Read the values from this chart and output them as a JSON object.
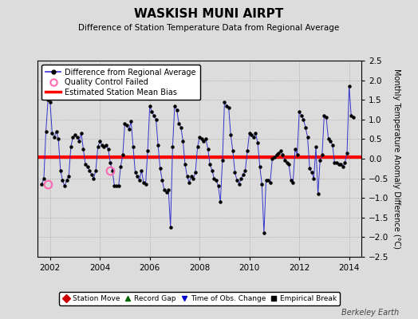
{
  "title": "WASKISH MUNI AIRPT",
  "subtitle": "Difference of Station Temperature Data from Regional Average",
  "ylabel": "Monthly Temperature Anomaly Difference (°C)",
  "xlim": [
    2001.5,
    2014.5
  ],
  "ylim": [
    -2.5,
    2.5
  ],
  "yticks": [
    -2.5,
    -2,
    -1.5,
    -1,
    -0.5,
    0,
    0.5,
    1,
    1.5,
    2,
    2.5
  ],
  "xticks": [
    2002,
    2004,
    2006,
    2008,
    2010,
    2012,
    2014
  ],
  "bias_value": 0.05,
  "background_color": "#dcdcdc",
  "plot_bg_color": "#dcdcdc",
  "line_color": "#3333cc",
  "bias_color": "#ff0000",
  "marker_color": "#000000",
  "qc_fail_color": "#ff69b4",
  "watermark": "Berkeley Earth",
  "time_series": [
    [
      2001.667,
      -0.65
    ],
    [
      2001.75,
      -0.5
    ],
    [
      2001.833,
      0.7
    ],
    [
      2001.917,
      1.5
    ],
    [
      2002.0,
      1.45
    ],
    [
      2002.083,
      0.65
    ],
    [
      2002.167,
      0.55
    ],
    [
      2002.25,
      0.7
    ],
    [
      2002.333,
      0.5
    ],
    [
      2002.417,
      -0.3
    ],
    [
      2002.5,
      -0.55
    ],
    [
      2002.583,
      -0.7
    ],
    [
      2002.667,
      -0.55
    ],
    [
      2002.75,
      -0.45
    ],
    [
      2002.833,
      0.3
    ],
    [
      2002.917,
      0.55
    ],
    [
      2003.0,
      0.6
    ],
    [
      2003.083,
      0.55
    ],
    [
      2003.167,
      0.45
    ],
    [
      2003.25,
      0.65
    ],
    [
      2003.333,
      0.25
    ],
    [
      2003.417,
      -0.15
    ],
    [
      2003.5,
      -0.2
    ],
    [
      2003.583,
      -0.3
    ],
    [
      2003.667,
      -0.4
    ],
    [
      2003.75,
      -0.5
    ],
    [
      2003.833,
      -0.3
    ],
    [
      2003.917,
      0.3
    ],
    [
      2004.0,
      0.45
    ],
    [
      2004.083,
      0.35
    ],
    [
      2004.167,
      0.3
    ],
    [
      2004.25,
      0.35
    ],
    [
      2004.333,
      0.25
    ],
    [
      2004.417,
      -0.1
    ],
    [
      2004.5,
      -0.3
    ],
    [
      2004.583,
      -0.7
    ],
    [
      2004.667,
      -0.7
    ],
    [
      2004.75,
      -0.7
    ],
    [
      2004.833,
      -0.2
    ],
    [
      2004.917,
      0.1
    ],
    [
      2005.0,
      0.9
    ],
    [
      2005.083,
      0.85
    ],
    [
      2005.167,
      0.75
    ],
    [
      2005.25,
      0.95
    ],
    [
      2005.333,
      0.3
    ],
    [
      2005.417,
      -0.35
    ],
    [
      2005.5,
      -0.45
    ],
    [
      2005.583,
      -0.55
    ],
    [
      2005.667,
      -0.3
    ],
    [
      2005.75,
      -0.6
    ],
    [
      2005.833,
      -0.65
    ],
    [
      2005.917,
      0.2
    ],
    [
      2006.0,
      1.35
    ],
    [
      2006.083,
      1.2
    ],
    [
      2006.167,
      1.1
    ],
    [
      2006.25,
      1.0
    ],
    [
      2006.333,
      0.35
    ],
    [
      2006.417,
      -0.25
    ],
    [
      2006.5,
      -0.55
    ],
    [
      2006.583,
      -0.8
    ],
    [
      2006.667,
      -0.85
    ],
    [
      2006.75,
      -0.8
    ],
    [
      2006.833,
      -1.75
    ],
    [
      2006.917,
      0.3
    ],
    [
      2007.0,
      1.35
    ],
    [
      2007.083,
      1.25
    ],
    [
      2007.167,
      0.9
    ],
    [
      2007.25,
      0.8
    ],
    [
      2007.333,
      0.45
    ],
    [
      2007.417,
      -0.15
    ],
    [
      2007.5,
      -0.45
    ],
    [
      2007.583,
      -0.6
    ],
    [
      2007.667,
      -0.45
    ],
    [
      2007.75,
      -0.5
    ],
    [
      2007.833,
      -0.35
    ],
    [
      2007.917,
      0.3
    ],
    [
      2008.0,
      0.55
    ],
    [
      2008.083,
      0.5
    ],
    [
      2008.167,
      0.45
    ],
    [
      2008.25,
      0.5
    ],
    [
      2008.333,
      0.25
    ],
    [
      2008.417,
      -0.15
    ],
    [
      2008.5,
      -0.3
    ],
    [
      2008.583,
      -0.5
    ],
    [
      2008.667,
      -0.55
    ],
    [
      2008.75,
      -0.7
    ],
    [
      2008.833,
      -1.1
    ],
    [
      2008.917,
      -0.05
    ],
    [
      2009.0,
      1.45
    ],
    [
      2009.083,
      1.35
    ],
    [
      2009.167,
      1.3
    ],
    [
      2009.25,
      0.6
    ],
    [
      2009.333,
      0.2
    ],
    [
      2009.417,
      -0.35
    ],
    [
      2009.5,
      -0.55
    ],
    [
      2009.583,
      -0.65
    ],
    [
      2009.667,
      -0.5
    ],
    [
      2009.75,
      -0.4
    ],
    [
      2009.833,
      -0.3
    ],
    [
      2009.917,
      0.2
    ],
    [
      2010.0,
      0.65
    ],
    [
      2010.083,
      0.6
    ],
    [
      2010.167,
      0.55
    ],
    [
      2010.25,
      0.65
    ],
    [
      2010.333,
      0.4
    ],
    [
      2010.417,
      -0.2
    ],
    [
      2010.5,
      -0.65
    ],
    [
      2010.583,
      -1.9
    ],
    [
      2010.667,
      -0.55
    ],
    [
      2010.75,
      -0.55
    ],
    [
      2010.833,
      -0.6
    ],
    [
      2010.917,
      0.0
    ],
    [
      2011.0,
      0.05
    ],
    [
      2011.083,
      0.1
    ],
    [
      2011.167,
      0.15
    ],
    [
      2011.25,
      0.2
    ],
    [
      2011.333,
      0.1
    ],
    [
      2011.417,
      -0.05
    ],
    [
      2011.5,
      -0.1
    ],
    [
      2011.583,
      -0.15
    ],
    [
      2011.667,
      -0.55
    ],
    [
      2011.75,
      -0.6
    ],
    [
      2011.833,
      0.25
    ],
    [
      2011.917,
      0.1
    ],
    [
      2012.0,
      1.2
    ],
    [
      2012.083,
      1.1
    ],
    [
      2012.167,
      1.0
    ],
    [
      2012.25,
      0.8
    ],
    [
      2012.333,
      0.55
    ],
    [
      2012.417,
      -0.25
    ],
    [
      2012.5,
      -0.35
    ],
    [
      2012.583,
      -0.5
    ],
    [
      2012.667,
      0.3
    ],
    [
      2012.75,
      -0.9
    ],
    [
      2012.833,
      -0.05
    ],
    [
      2012.917,
      0.1
    ],
    [
      2013.0,
      1.1
    ],
    [
      2013.083,
      1.05
    ],
    [
      2013.167,
      0.5
    ],
    [
      2013.25,
      0.45
    ],
    [
      2013.333,
      0.35
    ],
    [
      2013.417,
      -0.1
    ],
    [
      2013.5,
      -0.1
    ],
    [
      2013.583,
      -0.15
    ],
    [
      2013.667,
      -0.15
    ],
    [
      2013.75,
      -0.2
    ],
    [
      2013.833,
      -0.1
    ],
    [
      2013.917,
      0.15
    ],
    [
      2014.0,
      1.85
    ],
    [
      2014.083,
      1.1
    ],
    [
      2014.167,
      1.05
    ]
  ],
  "qc_fail_points": [
    [
      2001.917,
      -0.65
    ],
    [
      2004.417,
      -0.3
    ]
  ],
  "legend1_items": [
    {
      "label": "Difference from Regional Average",
      "color": "#3333cc",
      "type": "line_marker"
    },
    {
      "label": "Quality Control Failed",
      "color": "#ff69b4",
      "type": "circle_open"
    },
    {
      "label": "Estimated Station Mean Bias",
      "color": "#ff0000",
      "type": "line"
    }
  ],
  "legend2_items": [
    {
      "label": "Station Move",
      "color": "#cc0000",
      "type": "diamond"
    },
    {
      "label": "Record Gap",
      "color": "#006600",
      "type": "triangle_up"
    },
    {
      "label": "Time of Obs. Change",
      "color": "#0000cc",
      "type": "triangle_down"
    },
    {
      "label": "Empirical Break",
      "color": "#000000",
      "type": "square"
    }
  ]
}
